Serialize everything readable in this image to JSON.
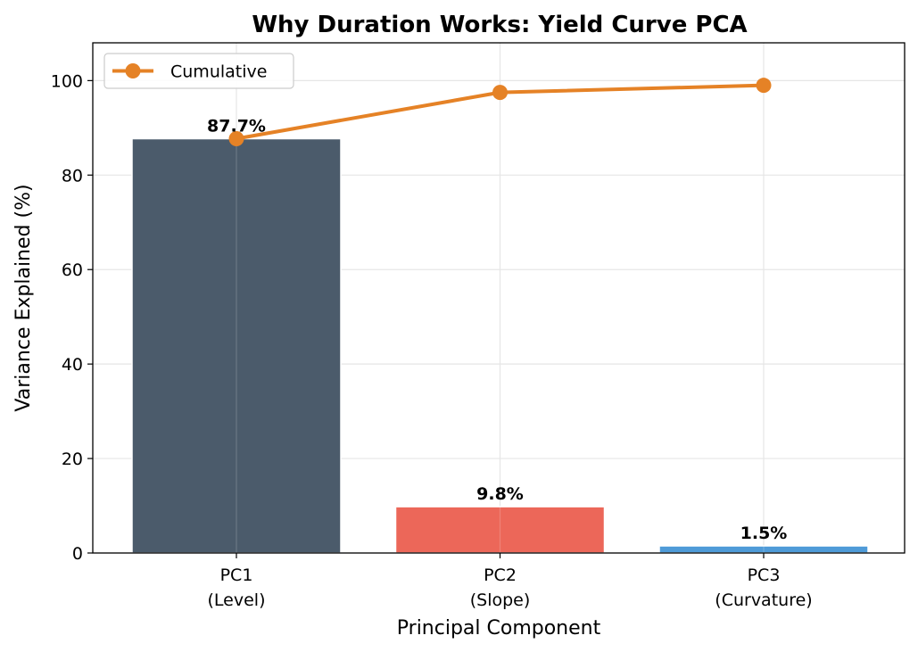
{
  "chart_data": {
    "type": "bar",
    "title": "Why Duration Works: Yield Curve PCA",
    "xlabel": "Principal Component",
    "ylabel": "Variance Explained (%)",
    "ylim": [
      0,
      108
    ],
    "yticks": [
      0,
      20,
      40,
      60,
      80,
      100
    ],
    "grid": true,
    "legend_position": "top-left",
    "categories": [
      {
        "line1": "PC1",
        "line2": "(Level)"
      },
      {
        "line1": "PC2",
        "line2": "(Slope)"
      },
      {
        "line1": "PC3",
        "line2": "(Curvature)"
      }
    ],
    "bars": [
      {
        "value": 87.7,
        "label": "87.7%",
        "color": "#4b5b6b"
      },
      {
        "value": 9.8,
        "label": "9.8%",
        "color": "#ec6759"
      },
      {
        "value": 1.5,
        "label": "1.5%",
        "color": "#4f9bd8"
      }
    ],
    "series": [
      {
        "name": "Cumulative",
        "type": "line",
        "color": "#e58226",
        "values": [
          87.7,
          97.5,
          99.0
        ]
      }
    ]
  }
}
